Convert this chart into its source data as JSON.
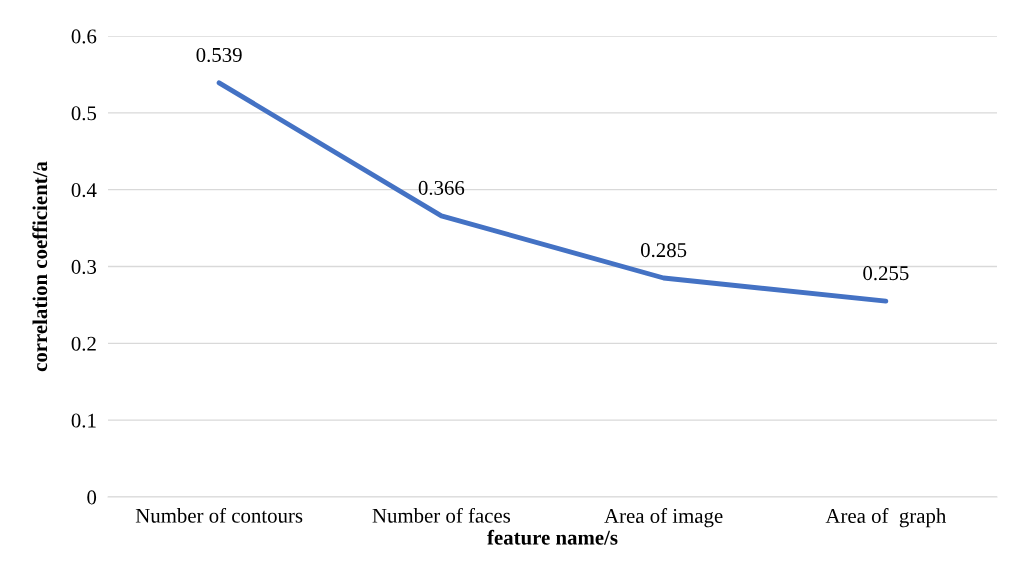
{
  "chart_data": {
    "type": "line",
    "xlabel": "feature name/s",
    "ylabel": "correlation coefficient/a",
    "categories": [
      "Number of contours",
      "Number of faces",
      "Area of image",
      "Area of  graph"
    ],
    "series": [
      {
        "color": "#4472c4",
        "values": [
          0.539,
          0.366,
          0.285,
          0.255
        ]
      }
    ],
    "ylim": [
      0,
      0.6
    ],
    "yticks": [
      0,
      0.1,
      0.2,
      0.3,
      0.4,
      0.5,
      0.6
    ],
    "grid": "y",
    "data_labels": true,
    "marker": "none",
    "line_style": "solid"
  }
}
